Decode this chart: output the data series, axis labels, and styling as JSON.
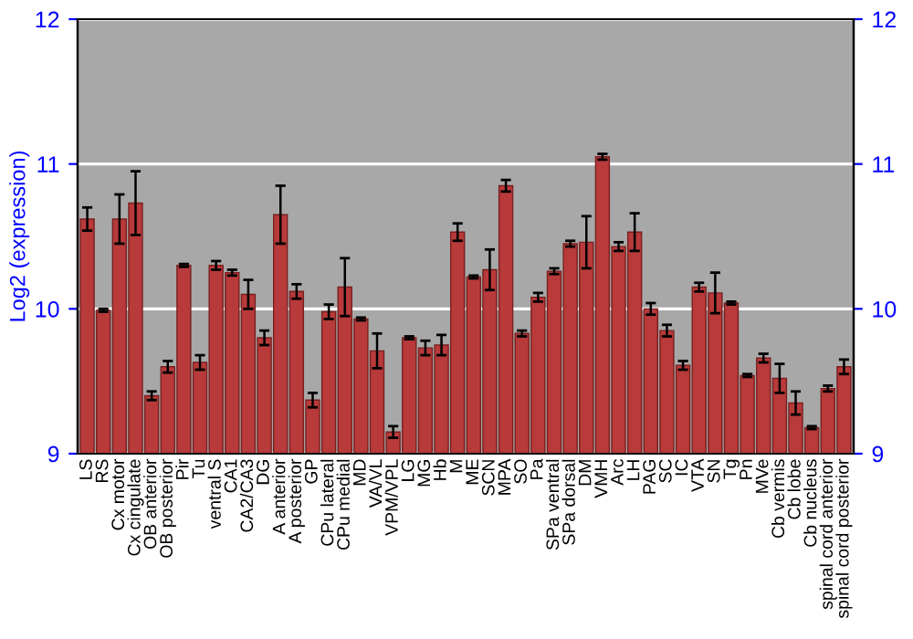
{
  "chart_data": {
    "type": "bar",
    "ylabel": "Log2 (expression)",
    "categories": [
      "LS",
      "RS",
      "Cx motor",
      "Cx cingulate",
      "OB anterior",
      "OB posterior",
      "Pir",
      "Tu",
      "ventral S",
      "CA1",
      "CA2/CA3",
      "DG",
      "A anterior",
      "A posterior",
      "GP",
      "CPu lateral",
      "CPu medial",
      "MD",
      "VA/VL",
      "VPM/VPL",
      "LG",
      "MG",
      "Hb",
      "M",
      "ME",
      "SCN",
      "MPA",
      "SO",
      "Pa",
      "SPa ventral",
      "SPa dorsal",
      "DM",
      "VMH",
      "Arc",
      "LH",
      "PAG",
      "SC",
      "IC",
      "VTA",
      "SN",
      "Tg",
      "Pn",
      "MVe",
      "Cb vermis",
      "Cb lobe",
      "Cb nucleus",
      "spinal cord anterior",
      "spinal cord posterior"
    ],
    "values": [
      10.62,
      9.99,
      10.62,
      10.73,
      9.4,
      9.6,
      10.3,
      9.63,
      10.3,
      10.25,
      10.1,
      9.8,
      10.65,
      10.12,
      9.37,
      9.98,
      10.15,
      9.93,
      9.71,
      9.15,
      9.8,
      9.73,
      9.75,
      10.53,
      10.22,
      10.27,
      10.85,
      9.83,
      10.08,
      10.26,
      10.45,
      10.46,
      11.05,
      10.43,
      10.53,
      10.0,
      9.85,
      9.61,
      10.15,
      10.11,
      10.04,
      9.54,
      9.66,
      9.52,
      9.35,
      9.18,
      9.45,
      9.6
    ],
    "errors": [
      0.08,
      0.01,
      0.17,
      0.22,
      0.03,
      0.04,
      0.01,
      0.05,
      0.03,
      0.02,
      0.1,
      0.05,
      0.2,
      0.05,
      0.05,
      0.05,
      0.2,
      0.01,
      0.12,
      0.04,
      0.01,
      0.05,
      0.07,
      0.06,
      0.01,
      0.14,
      0.04,
      0.02,
      0.03,
      0.02,
      0.02,
      0.18,
      0.02,
      0.03,
      0.13,
      0.04,
      0.04,
      0.03,
      0.03,
      0.14,
      0.01,
      0.01,
      0.03,
      0.1,
      0.08,
      0.01,
      0.02,
      0.05
    ],
    "color": "#b83a3a",
    "ylim": [
      9,
      12
    ],
    "yticks": [
      9,
      10,
      11,
      12
    ],
    "y2lim": [
      9,
      12
    ],
    "y2ticks": [
      9,
      10,
      11,
      12
    ],
    "grid": "y"
  }
}
